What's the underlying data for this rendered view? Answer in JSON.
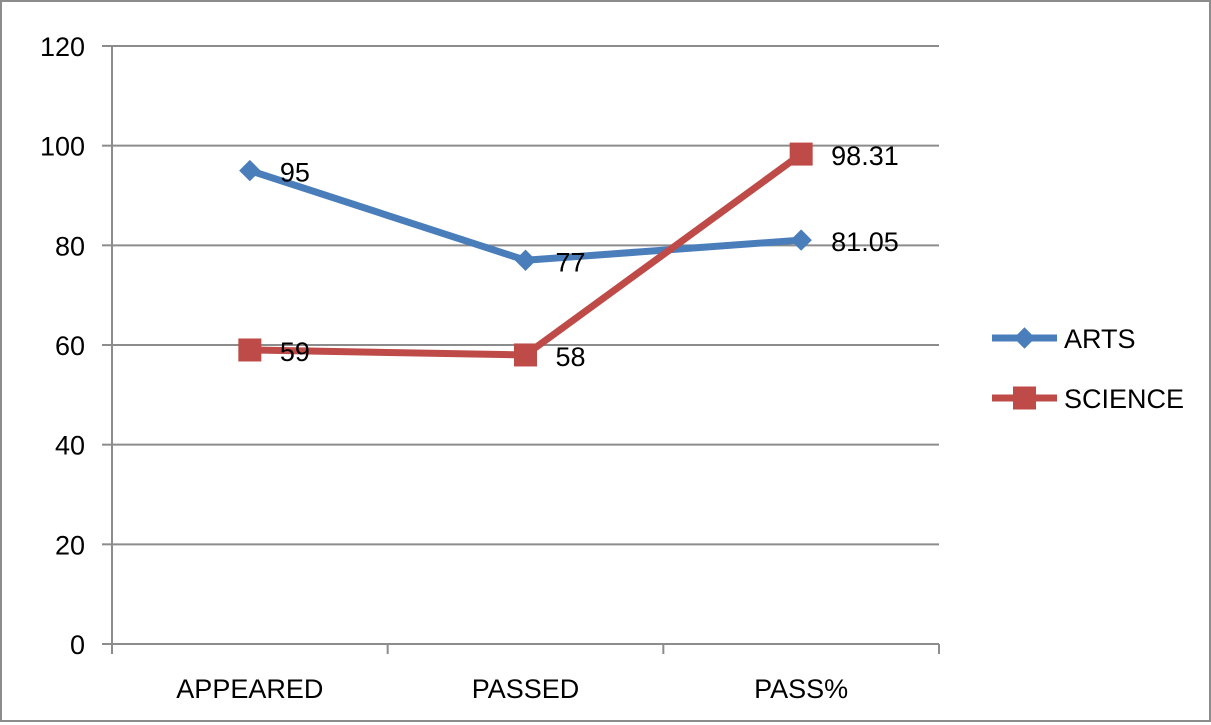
{
  "chart_data": {
    "type": "line",
    "categories": [
      "APPEARED",
      "PASSED",
      "PASS%"
    ],
    "series": [
      {
        "name": "ARTS",
        "values": [
          95,
          77,
          81.05
        ],
        "labels": [
          "95",
          "77",
          "81.05"
        ],
        "color": "#4a7ebb",
        "marker": "diamond"
      },
      {
        "name": "SCIENCE",
        "values": [
          59,
          58,
          98.31
        ],
        "labels": [
          "59",
          "58",
          "98.31"
        ],
        "color": "#be4b48",
        "marker": "square"
      }
    ],
    "ylim": [
      0,
      120
    ],
    "yticks": [
      "0",
      "20",
      "40",
      "60",
      "80",
      "100",
      "120"
    ],
    "grid": true,
    "legend_position": "right",
    "title": "",
    "xlabel": "",
    "ylabel": ""
  }
}
